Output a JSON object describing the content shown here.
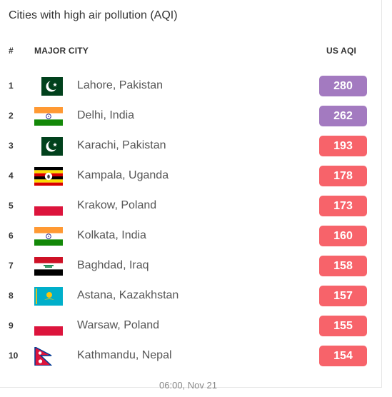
{
  "title": "Cities with high air pollution (AQI)",
  "header": {
    "rank": "#",
    "city": "MAJOR CITY",
    "aqi": "US AQI"
  },
  "rows": [
    {
      "rank": "1",
      "city": "Lahore, Pakistan",
      "aqi": "280",
      "flag": "pakistan-flag-icon",
      "color": "#a37ac0"
    },
    {
      "rank": "2",
      "city": "Delhi, India",
      "aqi": "262",
      "flag": "india-flag-icon",
      "color": "#a37ac0"
    },
    {
      "rank": "3",
      "city": "Karachi, Pakistan",
      "aqi": "193",
      "flag": "pakistan-flag-icon",
      "color": "#f7636a"
    },
    {
      "rank": "4",
      "city": "Kampala, Uganda",
      "aqi": "178",
      "flag": "uganda-flag-icon",
      "color": "#f7636a"
    },
    {
      "rank": "5",
      "city": "Krakow, Poland",
      "aqi": "173",
      "flag": "poland-flag-icon",
      "color": "#f7636a"
    },
    {
      "rank": "6",
      "city": "Kolkata, India",
      "aqi": "160",
      "flag": "india-flag-icon",
      "color": "#f7636a"
    },
    {
      "rank": "7",
      "city": "Baghdad, Iraq",
      "aqi": "158",
      "flag": "iraq-flag-icon",
      "color": "#f7636a"
    },
    {
      "rank": "8",
      "city": "Astana, Kazakhstan",
      "aqi": "157",
      "flag": "kazakhstan-flag-icon",
      "color": "#f7636a"
    },
    {
      "rank": "9",
      "city": "Warsaw, Poland",
      "aqi": "155",
      "flag": "poland-flag-icon",
      "color": "#f7636a"
    },
    {
      "rank": "10",
      "city": "Kathmandu, Nepal",
      "aqi": "154",
      "flag": "nepal-flag-icon",
      "color": "#f7636a"
    }
  ],
  "timestamp": "06:00, Nov 21"
}
